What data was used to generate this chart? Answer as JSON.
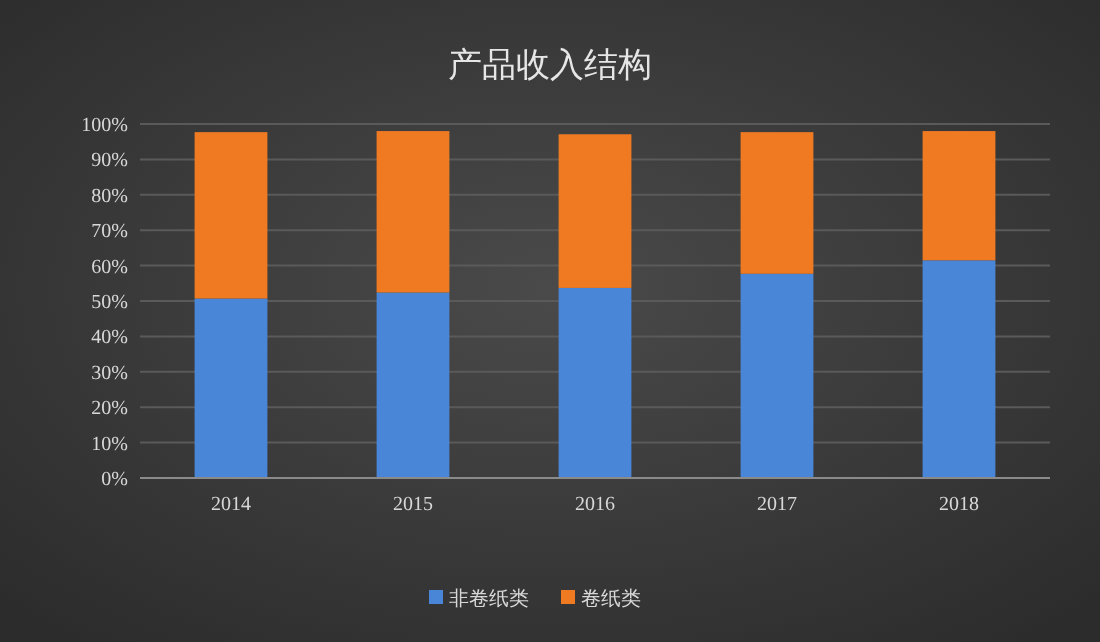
{
  "chart_data": {
    "type": "bar",
    "title": "产品收入结构",
    "categories": [
      "2014",
      "2015",
      "2016",
      "2017",
      "2018"
    ],
    "stacked": true,
    "series": [
      {
        "name": "非卷纸类",
        "color": "#4a86d8",
        "values": [
          50.7,
          52.4,
          53.7,
          57.7,
          61.5
        ]
      },
      {
        "name": "卷纸类",
        "color": "#f07a22",
        "values": [
          47.0,
          45.6,
          43.4,
          40.0,
          36.5
        ]
      }
    ],
    "ylim": [
      0,
      100
    ],
    "yticks": [
      {
        "value": 0,
        "label": "0%"
      },
      {
        "value": 10,
        "label": "10%"
      },
      {
        "value": 20,
        "label": "20%"
      },
      {
        "value": 30,
        "label": "30%"
      },
      {
        "value": 40,
        "label": "40%"
      },
      {
        "value": 50,
        "label": "50%"
      },
      {
        "value": 60,
        "label": "60%"
      },
      {
        "value": 70,
        "label": "70%"
      },
      {
        "value": 80,
        "label": "80%"
      },
      {
        "value": 90,
        "label": "90%"
      },
      {
        "value": 100,
        "label": "100%"
      }
    ],
    "grid": "y",
    "legend": "bottom"
  }
}
